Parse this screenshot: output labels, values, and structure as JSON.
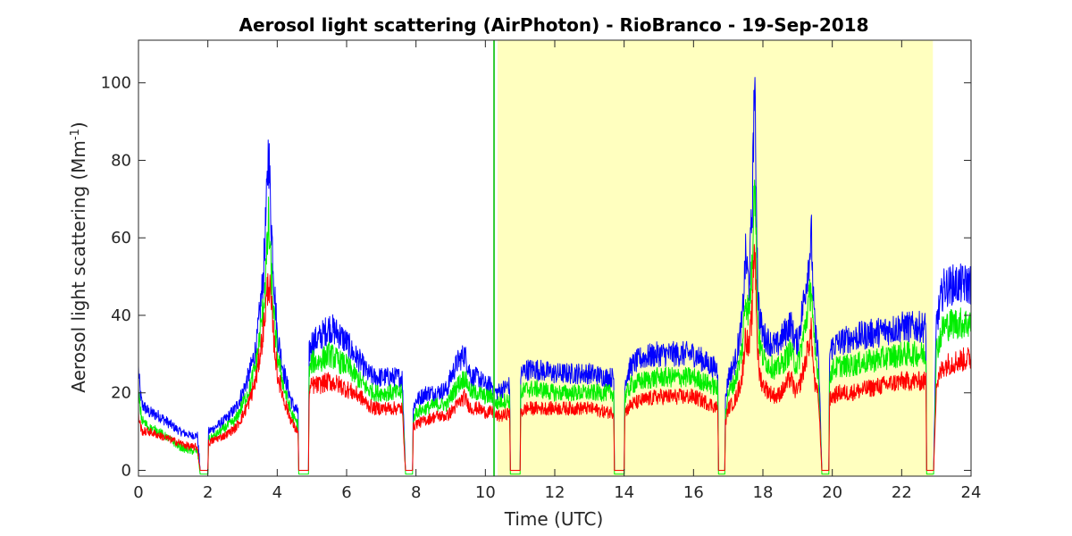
{
  "chart_data": {
    "type": "line",
    "title": "Aerosol light scattering (AirPhoton) - RioBranco - 19-Sep-2018",
    "xlabel": "Time (UTC)",
    "ylabel_main": "Aerosol light scattering (Mm",
    "ylabel_sup": "-1",
    "ylabel_close": ")",
    "xlim": [
      0,
      24
    ],
    "ylim": [
      -1.5,
      111
    ],
    "xticks": [
      0,
      2,
      4,
      6,
      8,
      10,
      12,
      14,
      16,
      18,
      20,
      22,
      24
    ],
    "yticks": [
      0,
      20,
      40,
      60,
      80,
      100
    ],
    "grid": false,
    "shaded_region": {
      "x_start": 10.35,
      "x_end": 22.9,
      "color": "#ffffbf"
    },
    "vertical_marker": {
      "x": 10.25,
      "color": "#33cc33"
    },
    "series": [
      {
        "color": "#0000ff",
        "x": [
          0,
          0.05,
          0.1,
          0.3,
          0.6,
          0.9,
          1.2,
          1.5,
          1.7,
          1.78,
          1.8,
          2.0,
          2.02,
          2.2,
          2.5,
          2.8,
          3.0,
          3.2,
          3.4,
          3.6,
          3.7,
          3.75,
          3.8,
          3.9,
          4.0,
          4.2,
          4.4,
          4.5,
          4.6,
          4.62,
          4.7,
          4.8,
          4.9,
          4.92,
          5.0,
          5.2,
          5.5,
          5.8,
          6.0,
          6.2,
          6.4,
          6.6,
          6.8,
          7.0,
          7.3,
          7.6,
          7.7,
          7.72,
          7.8,
          7.9,
          7.92,
          8.0,
          8.3,
          8.6,
          8.9,
          9.0,
          9.2,
          9.4,
          9.5,
          9.6,
          9.8,
          10.0,
          10.2,
          10.3,
          10.5,
          10.7,
          10.72,
          10.8,
          11.0,
          11.02,
          11.2,
          11.5,
          12.0,
          12.5,
          13.0,
          13.5,
          13.7,
          13.72,
          13.8,
          14.0,
          14.02,
          14.2,
          14.5,
          15.0,
          15.5,
          16.0,
          16.5,
          16.7,
          16.72,
          16.8,
          16.9,
          16.92,
          17.0,
          17.2,
          17.4,
          17.5,
          17.6,
          17.7,
          17.75,
          17.8,
          17.85,
          17.9,
          18.0,
          18.2,
          18.4,
          18.6,
          18.8,
          18.9,
          19.0,
          19.2,
          19.4,
          19.45,
          19.5,
          19.6,
          19.7,
          19.72,
          19.8,
          19.9,
          19.92,
          20.0,
          20.2,
          20.5,
          21.0,
          21.5,
          22.0,
          22.5,
          22.7,
          22.72,
          22.8,
          22.9,
          22.92,
          23.0,
          23.2,
          23.5,
          24.0
        ],
        "y": [
          26,
          20,
          17,
          15,
          14,
          12,
          10,
          9,
          9,
          0,
          0,
          0,
          10,
          11,
          13,
          16,
          20,
          25,
          32,
          50,
          70,
          84,
          70,
          50,
          35,
          25,
          18,
          16,
          15,
          0,
          0,
          0,
          0,
          30,
          33,
          34,
          37,
          35,
          33,
          30,
          28,
          25,
          24,
          24,
          24,
          24,
          0,
          0,
          0,
          0,
          16,
          18,
          20,
          20,
          21,
          24,
          28,
          30,
          27,
          24,
          24,
          22,
          22,
          20,
          21,
          22,
          0,
          0,
          0,
          25,
          26,
          26,
          25,
          25,
          25,
          24,
          24,
          0,
          0,
          0,
          23,
          27,
          29,
          30,
          30,
          30,
          27,
          26,
          0,
          0,
          0,
          18,
          24,
          28,
          38,
          55,
          48,
          70,
          100,
          80,
          48,
          40,
          35,
          33,
          32,
          35,
          38,
          34,
          33,
          45,
          60,
          45,
          36,
          30,
          0,
          0,
          0,
          0,
          30,
          32,
          33,
          34,
          35,
          36,
          37,
          37,
          37,
          0,
          0,
          0,
          0,
          38,
          47,
          48,
          48
        ]
      },
      {
        "color": "#00ee00",
        "x": [
          0,
          0.05,
          0.1,
          0.3,
          0.6,
          0.9,
          1.2,
          1.5,
          1.7,
          1.78,
          1.8,
          2.0,
          2.02,
          2.2,
          2.5,
          2.8,
          3.0,
          3.2,
          3.4,
          3.6,
          3.7,
          3.75,
          3.8,
          3.9,
          4.0,
          4.2,
          4.4,
          4.5,
          4.6,
          4.62,
          4.7,
          4.8,
          4.9,
          4.92,
          5.0,
          5.2,
          5.5,
          5.8,
          6.0,
          6.2,
          6.4,
          6.6,
          6.8,
          7.0,
          7.3,
          7.6,
          7.7,
          7.72,
          7.8,
          7.9,
          7.92,
          8.0,
          8.3,
          8.6,
          8.9,
          9.0,
          9.2,
          9.4,
          9.5,
          9.6,
          9.8,
          10.0,
          10.2,
          10.3,
          10.5,
          10.7,
          10.72,
          10.8,
          11.0,
          11.02,
          11.2,
          11.5,
          12.0,
          12.5,
          13.0,
          13.5,
          13.7,
          13.72,
          13.8,
          14.0,
          14.02,
          14.2,
          14.5,
          15.0,
          15.5,
          16.0,
          16.5,
          16.7,
          16.72,
          16.8,
          16.9,
          16.92,
          17.0,
          17.2,
          17.4,
          17.5,
          17.6,
          17.7,
          17.75,
          17.8,
          17.85,
          17.9,
          18.0,
          18.2,
          18.4,
          18.6,
          18.8,
          18.9,
          19.0,
          19.2,
          19.4,
          19.45,
          19.5,
          19.6,
          19.7,
          19.72,
          19.8,
          19.9,
          19.92,
          20.0,
          20.2,
          20.5,
          21.0,
          21.5,
          22.0,
          22.5,
          22.7,
          22.72,
          22.8,
          22.9,
          22.92,
          23.0,
          23.2,
          23.5,
          24.0
        ],
        "y": [
          20,
          16,
          13,
          11,
          10,
          8,
          6,
          5,
          5,
          -1,
          -1,
          -1,
          8,
          9,
          11,
          13,
          17,
          21,
          28,
          42,
          55,
          64,
          55,
          40,
          30,
          21,
          15,
          13,
          12,
          -1,
          -1,
          -1,
          -1,
          25,
          28,
          28,
          30,
          28,
          27,
          25,
          23,
          21,
          20,
          20,
          20,
          20,
          -1,
          -1,
          -1,
          -1,
          13,
          15,
          16,
          17,
          17,
          19,
          22,
          24,
          22,
          20,
          20,
          19,
          19,
          17,
          18,
          18,
          -1,
          -1,
          -1,
          20,
          21,
          21,
          20,
          20,
          20,
          20,
          20,
          -1,
          -1,
          -1,
          19,
          22,
          23,
          24,
          24,
          24,
          22,
          21,
          -1,
          -1,
          -1,
          15,
          20,
          23,
          31,
          45,
          40,
          55,
          80,
          62,
          40,
          33,
          29,
          27,
          26,
          28,
          31,
          28,
          27,
          36,
          48,
          36,
          30,
          25,
          -1,
          -1,
          -1,
          -1,
          24,
          26,
          27,
          27,
          28,
          29,
          30,
          30,
          30,
          -1,
          -1,
          -1,
          -1,
          31,
          37,
          38,
          38
        ]
      },
      {
        "color": "#ff0000",
        "x": [
          0,
          0.05,
          0.1,
          0.3,
          0.6,
          0.9,
          1.2,
          1.5,
          1.7,
          1.78,
          1.8,
          2.0,
          2.02,
          2.2,
          2.5,
          2.8,
          3.0,
          3.2,
          3.4,
          3.6,
          3.7,
          3.75,
          3.8,
          3.9,
          4.0,
          4.2,
          4.4,
          4.5,
          4.6,
          4.62,
          4.7,
          4.8,
          4.9,
          4.92,
          5.0,
          5.2,
          5.5,
          5.8,
          6.0,
          6.2,
          6.4,
          6.6,
          6.8,
          7.0,
          7.3,
          7.6,
          7.7,
          7.72,
          7.8,
          7.9,
          7.92,
          8.0,
          8.3,
          8.6,
          8.9,
          9.0,
          9.2,
          9.4,
          9.5,
          9.6,
          9.8,
          10.0,
          10.2,
          10.3,
          10.5,
          10.7,
          10.72,
          10.8,
          11.0,
          11.02,
          11.2,
          11.5,
          12.0,
          12.5,
          13.0,
          13.5,
          13.7,
          13.72,
          13.8,
          14.0,
          14.02,
          14.2,
          14.5,
          15.0,
          15.5,
          16.0,
          16.5,
          16.7,
          16.72,
          16.8,
          16.9,
          16.92,
          17.0,
          17.2,
          17.4,
          17.5,
          17.6,
          17.7,
          17.75,
          17.8,
          17.85,
          17.9,
          18.0,
          18.2,
          18.4,
          18.6,
          18.8,
          18.9,
          19.0,
          19.2,
          19.4,
          19.45,
          19.5,
          19.6,
          19.7,
          19.72,
          19.8,
          19.9,
          19.92,
          20.0,
          20.2,
          20.5,
          21.0,
          21.5,
          22.0,
          22.5,
          22.7,
          22.72,
          22.8,
          22.9,
          22.92,
          23.0,
          23.2,
          23.5,
          24.0
        ],
        "y": [
          14,
          12,
          10,
          10,
          9,
          8,
          7,
          6,
          6,
          0,
          0,
          0,
          7,
          8,
          9,
          11,
          14,
          18,
          24,
          36,
          45,
          49,
          45,
          34,
          25,
          18,
          13,
          11,
          10,
          0,
          0,
          0,
          0,
          20,
          22,
          22,
          23,
          22,
          21,
          20,
          19,
          17,
          16,
          16,
          16,
          16,
          0,
          0,
          0,
          0,
          11,
          12,
          13,
          14,
          14,
          15,
          17,
          19,
          17,
          16,
          16,
          15,
          15,
          14,
          14,
          15,
          0,
          0,
          0,
          15,
          16,
          16,
          16,
          16,
          16,
          15,
          15,
          0,
          0,
          0,
          15,
          17,
          18,
          19,
          19,
          19,
          17,
          16,
          0,
          0,
          0,
          12,
          16,
          18,
          24,
          35,
          31,
          42,
          60,
          48,
          30,
          25,
          22,
          20,
          19,
          21,
          24,
          21,
          20,
          27,
          36,
          27,
          22,
          19,
          0,
          0,
          0,
          0,
          18,
          19,
          20,
          20,
          21,
          22,
          23,
          23,
          23,
          0,
          0,
          0,
          0,
          22,
          27,
          28,
          29
        ]
      }
    ]
  }
}
